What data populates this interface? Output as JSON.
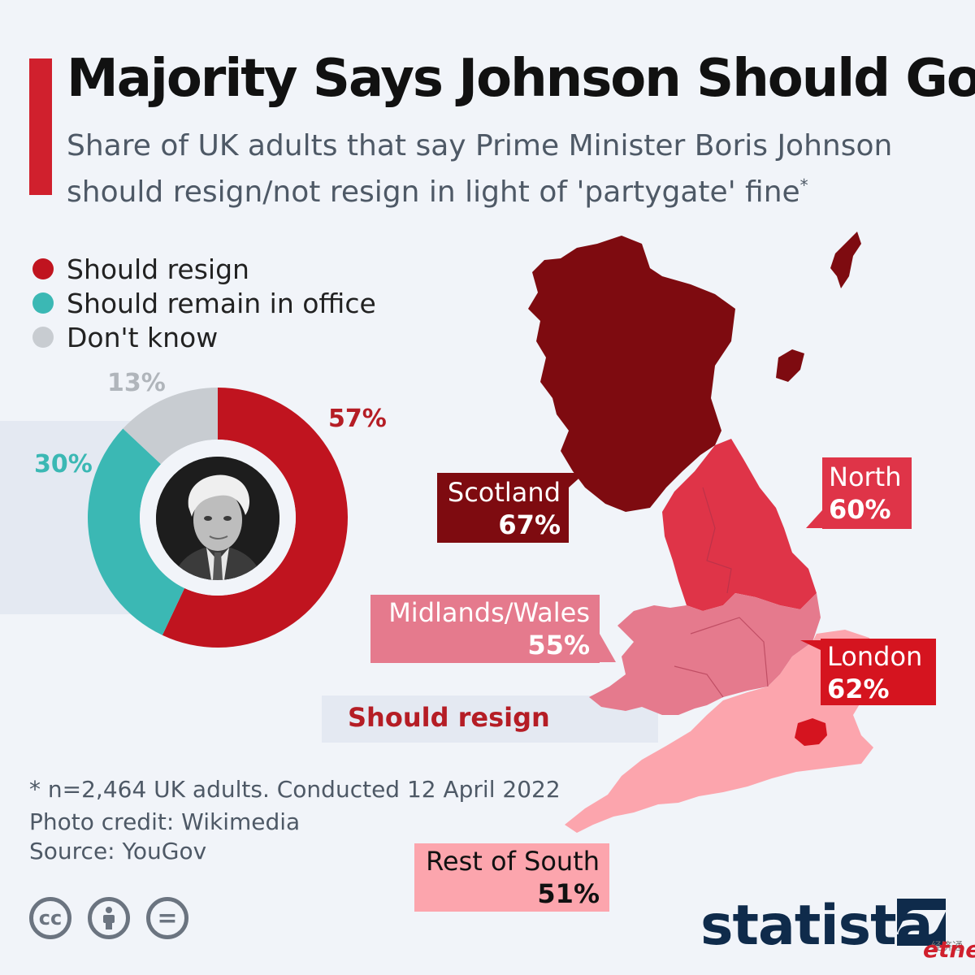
{
  "header": {
    "title": "Majority Says Johnson Should Go",
    "subtitle": "Share of UK adults that say Prime Minister Boris Johnson should resign/not resign in light of 'partygate' fine",
    "subtitle_mark": "*"
  },
  "legend": {
    "items": [
      {
        "label": "Should resign",
        "color": "#c0141f"
      },
      {
        "label": "Should remain in office",
        "color": "#3bb8b4"
      },
      {
        "label": "Don't know",
        "color": "#c8ccd1"
      }
    ]
  },
  "chart_data": [
    {
      "type": "pie",
      "variant": "donut",
      "categories": [
        "Should resign",
        "Should remain in office",
        "Don't know"
      ],
      "values": [
        57,
        30,
        13
      ],
      "value_labels": [
        "57%",
        "30%",
        "13%"
      ],
      "colors": [
        "#c0141f",
        "#3bb8b4",
        "#c8ccd1"
      ],
      "center_image": "portrait-photo"
    },
    {
      "type": "choropleth",
      "measure_label": "Should resign",
      "regions": [
        {
          "name": "Scotland",
          "value": 67,
          "label": "67%",
          "color": "#7e0b10"
        },
        {
          "name": "North",
          "value": 60,
          "label": "60%",
          "color": "#df3448"
        },
        {
          "name": "Midlands/Wales",
          "value": 55,
          "label": "55%",
          "color": "#e57a8d"
        },
        {
          "name": "London",
          "value": 62,
          "label": "62%",
          "color": "#d5141f"
        },
        {
          "name": "Rest of South",
          "value": 51,
          "label": "51%",
          "color": "#fca5ad"
        }
      ]
    }
  ],
  "map": {
    "should_resign_label": "Should resign"
  },
  "footer": {
    "note": "* n=2,464 UK adults. Conducted 12 April 2022",
    "photo_credit": "Photo credit: Wikimedia",
    "source": "Source: YouGov",
    "license_icons": [
      "cc-icon",
      "attribution-icon",
      "no-derivatives-icon"
    ],
    "cc_text": "cc",
    "nd_text": "=",
    "brand": "statista",
    "watermark": "etnet",
    "watermark_cn": "经济通"
  }
}
